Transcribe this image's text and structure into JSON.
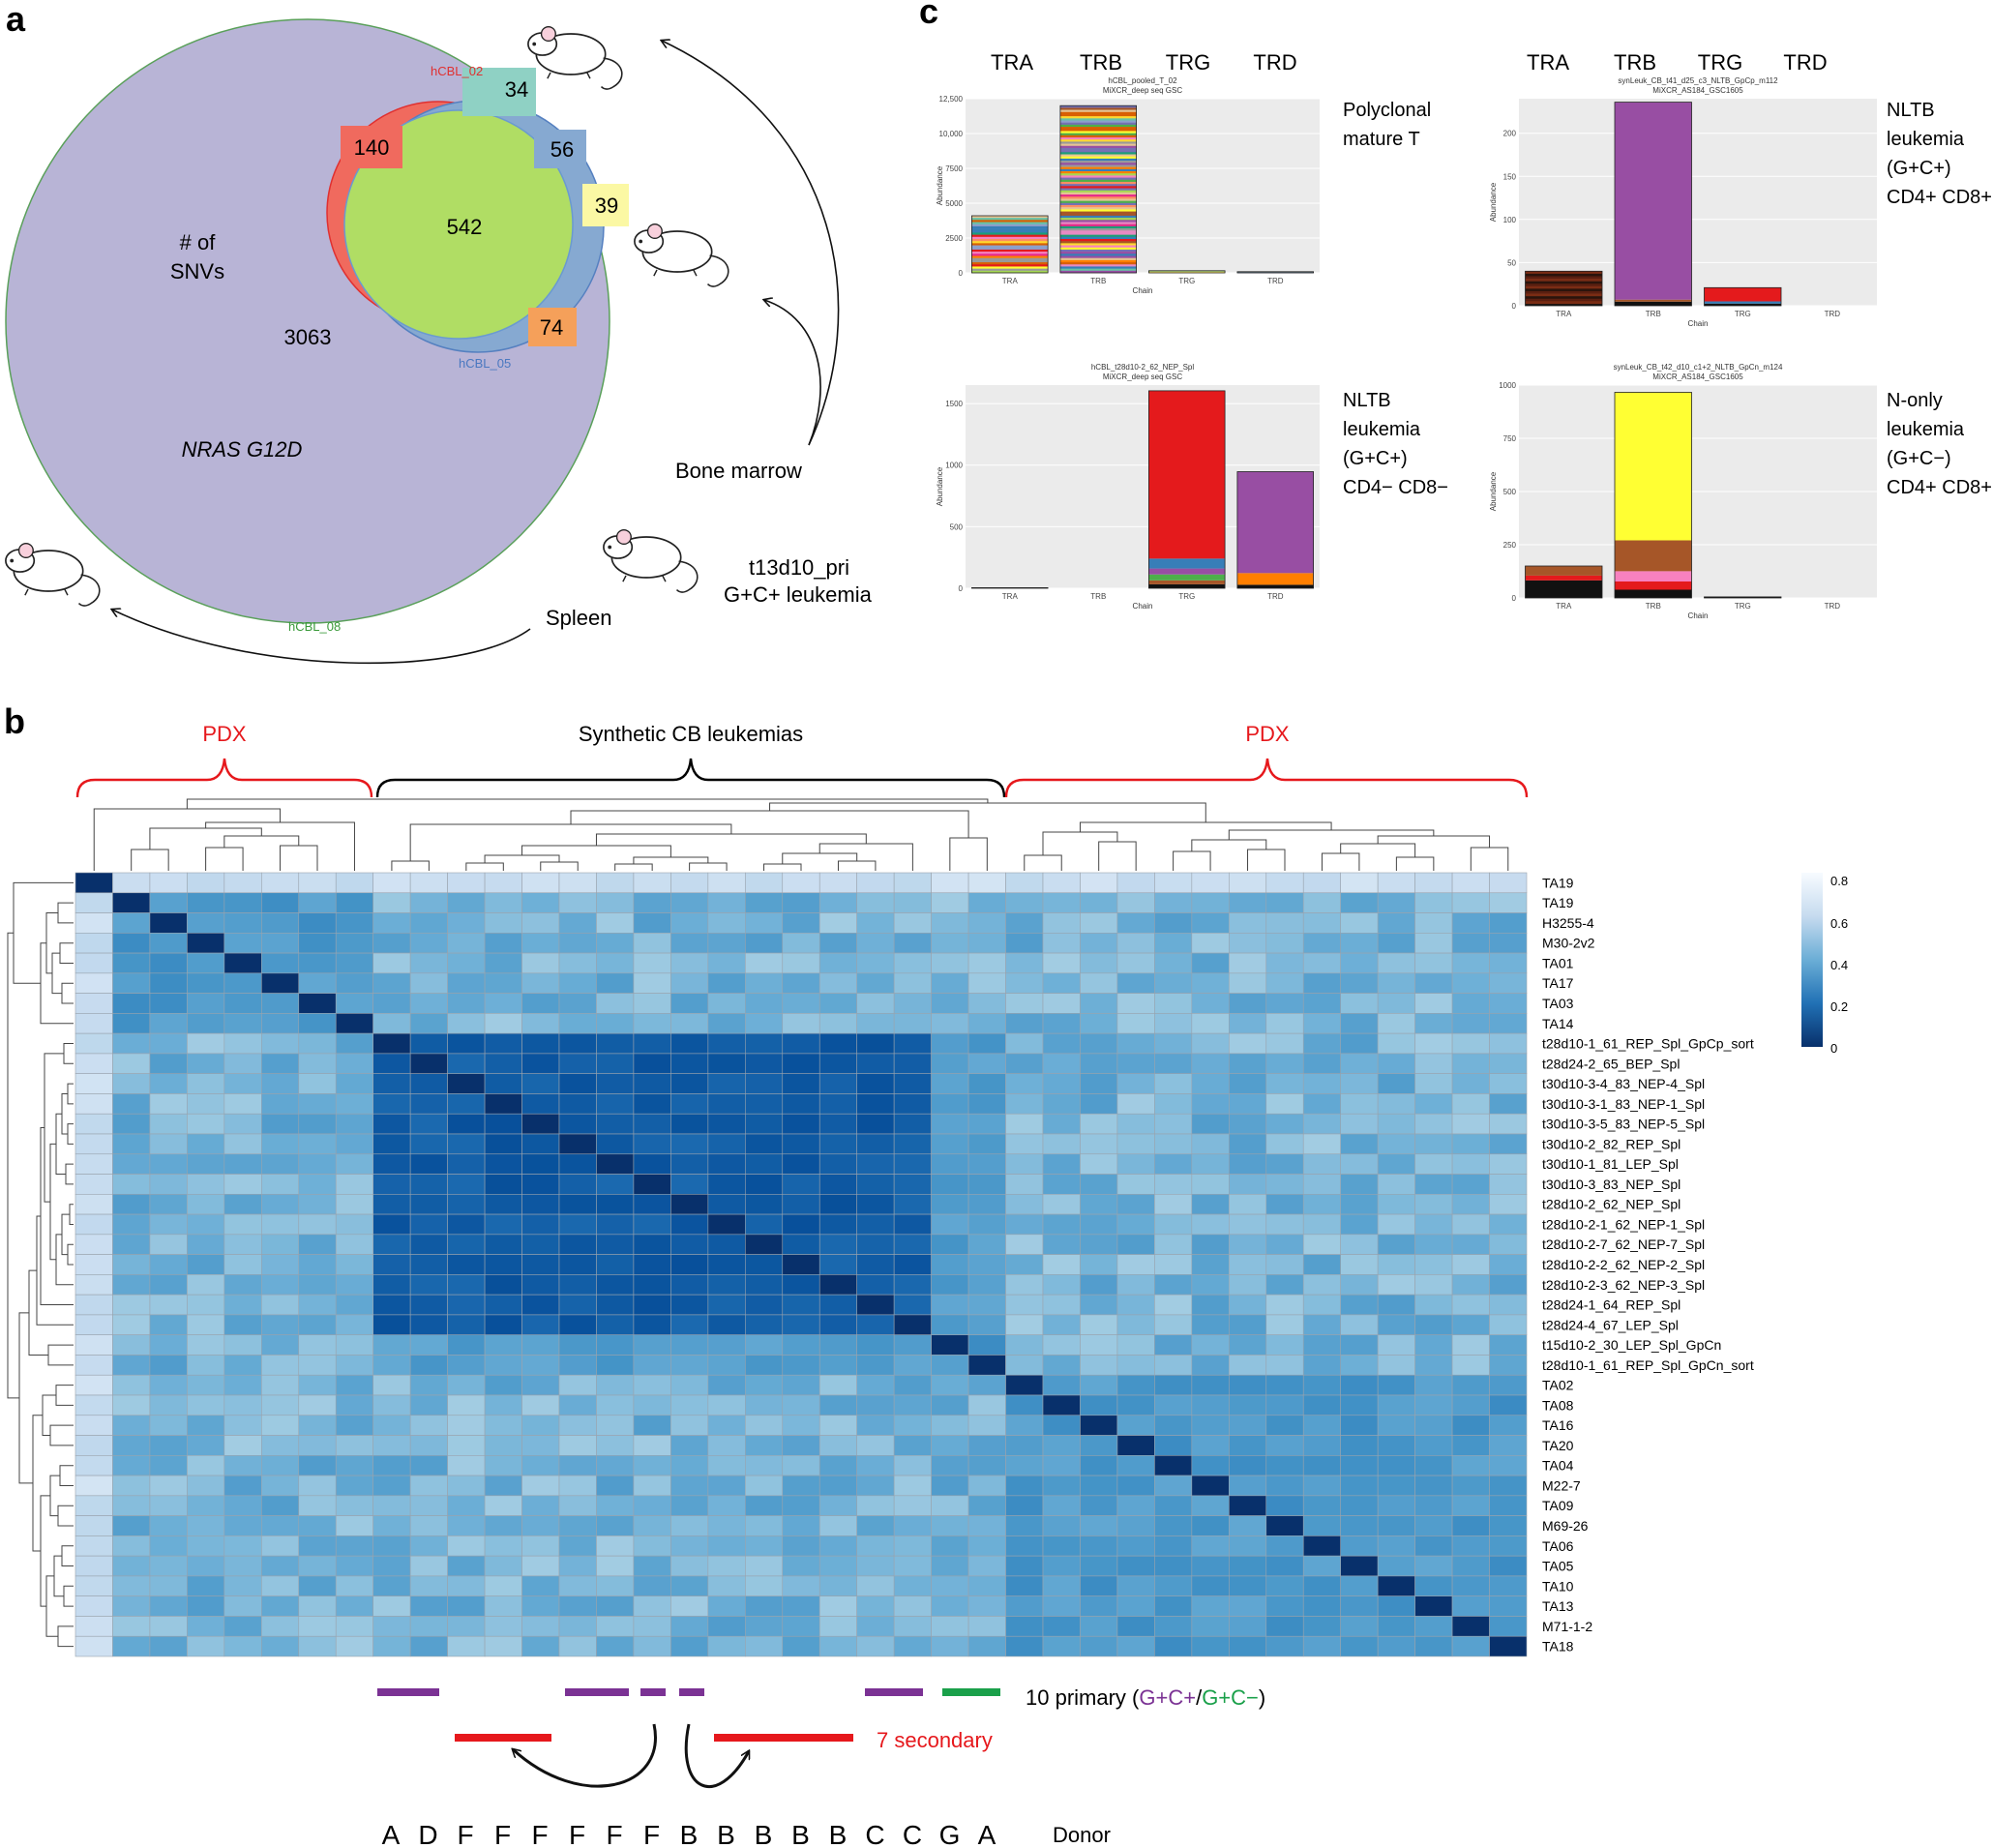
{
  "colors": {
    "venn_big": "#b8b4d6",
    "venn_red": "#f06a5e",
    "venn_blue": "#86a9d1",
    "venn_green": "#b0dd64",
    "venn_orange": "#f5a05a",
    "venn_teal": "#8fd1c4",
    "venn_yellow": "#fbf8a4",
    "pdx_red": "#e6181c",
    "purple": "#7b3294",
    "green": "#1aa04a",
    "heat_dark": "#08306b",
    "heat_light": "#f7fbff"
  },
  "panel_labels": {
    "a": "a",
    "b": "b",
    "c": "c"
  },
  "panel_a": {
    "set_labels": {
      "hcbl_02": "hCBL_02",
      "hcbl_05": "hCBL_05",
      "hcbl_08": "hCBL_08"
    },
    "counts": {
      "red_only": "140",
      "teal": "34",
      "blue": "56",
      "center": "542",
      "yellow": "39",
      "orange": "74",
      "big": "3063"
    },
    "snv_label_1": "# of",
    "snv_label_2": "SNVs",
    "gene": "NRAS G12D",
    "bone_marrow": "Bone marrow",
    "spleen": "Spleen",
    "primary_1": "t13d10_pri",
    "primary_2": "G+C+ leukemia"
  },
  "panel_b": {
    "group_left": "PDX",
    "group_mid": "Synthetic CB leukemias",
    "group_right": "PDX",
    "rows": [
      "TA19",
      "TA19",
      "H3255-4",
      "M30-2v2",
      "TA01",
      "TA17",
      "TA03",
      "TA14",
      "t28d10-1_61_REP_Spl_GpCp_sort",
      "t28d24-2_65_BEP_Spl",
      "t30d10-3-4_83_NEP-4_Spl",
      "t30d10-3-1_83_NEP-1_Spl",
      "t30d10-3-5_83_NEP-5_Spl",
      "t30d10-2_82_REP_Spl",
      "t30d10-1_81_LEP_Spl",
      "t30d10-3_83_NEP_Spl",
      "t28d10-2_62_NEP_Spl",
      "t28d10-2-1_62_NEP-1_Spl",
      "t28d10-2-7_62_NEP-7_Spl",
      "t28d10-2-2_62_NEP-2_Spl",
      "t28d10-2-3_62_NEP-3_Spl",
      "t28d24-1_64_REP_Spl",
      "t28d24-4_67_LEP_Spl",
      "t15d10-2_30_LEP_Spl_GpCn",
      "t28d10-1_61_REP_Spl_GpCn_sort",
      "TA02",
      "TA08",
      "TA16",
      "TA20",
      "TA04",
      "M22-7",
      "TA09",
      "M69-26",
      "TA06",
      "TA05",
      "TA10",
      "TA13",
      "M71-1-2",
      "TA18"
    ],
    "legend_ticks": [
      "0.8",
      "0.6",
      "0.4",
      "0.2",
      "0"
    ],
    "primary_label": "10 primary (",
    "primary_gcp": "G+C+",
    "primary_slash": "/",
    "primary_gcn": "G+C−",
    "primary_close": ")",
    "secondary_label": "7 secondary",
    "donors": [
      "A",
      "D",
      "F",
      "F",
      "F",
      "F",
      "F",
      "F",
      "B",
      "B",
      "B",
      "B",
      "B",
      "C",
      "C",
      "G",
      "A"
    ],
    "donor_label": "Donor"
  },
  "panel_c": {
    "chains": [
      "TRA",
      "TRB",
      "TRG",
      "TRD"
    ],
    "chart_data": [
      {
        "type": "bar",
        "title": "hCBL_pooled_T_02",
        "subtitle": "MiXCR_deep seq GSC",
        "xlabel": "Chain",
        "ylabel": "Abundance",
        "categories": [
          "TRA",
          "TRB",
          "TRG",
          "TRD"
        ],
        "values": [
          4100,
          12000,
          150,
          80
        ],
        "ylim": [
          0,
          12500
        ],
        "yticks": [
          0,
          2500,
          5000,
          7500,
          10000,
          12500
        ],
        "ytick_labels": [
          "0",
          "2500",
          "5000",
          "7500",
          "10,000",
          "12,500"
        ],
        "side_label": [
          "Polyclonal",
          "mature T"
        ],
        "style": "polyclonal"
      },
      {
        "type": "bar",
        "title": "synLeuk_CB_t41_d25_c3_NLTB_GpCp_m112",
        "subtitle": "MiXCR_AS184_GSC1605",
        "xlabel": "Chain",
        "ylabel": "Abundance",
        "categories": [
          "TRA",
          "TRB",
          "TRG",
          "TRD"
        ],
        "values": [
          40,
          236,
          21,
          0
        ],
        "ylim": [
          0,
          240
        ],
        "yticks": [
          0,
          50,
          100,
          150,
          200
        ],
        "ytick_labels": [
          "0",
          "50",
          "100",
          "150",
          "200"
        ],
        "side_label": [
          "NLTB",
          "leukemia",
          "(G+C+)",
          "CD4+ CD8+"
        ],
        "style": "nltb1"
      },
      {
        "type": "bar",
        "title": "hCBL_t28d10-2_62_NEP_Spl",
        "subtitle": "MiXCR_deep seq GSC",
        "xlabel": "Chain",
        "ylabel": "Abundance",
        "categories": [
          "TRA",
          "TRB",
          "TRG",
          "TRD"
        ],
        "values": [
          5,
          0,
          1604,
          947
        ],
        "ylim": [
          0,
          1650
        ],
        "yticks": [
          0,
          500,
          1000,
          1500
        ],
        "ytick_labels": [
          "0",
          "500",
          "1000",
          "1500"
        ],
        "side_label": [
          "NLTB",
          "leukemia",
          "(G+C+)",
          "CD4− CD8−"
        ],
        "style": "nltb2"
      },
      {
        "type": "bar",
        "title": "synLeuk_CB_t42_d10_c1+2_NLTB_GpCn_m124",
        "subtitle": "MiXCR_AS184_GSC1605",
        "xlabel": "Chain",
        "ylabel": "Abundance",
        "categories": [
          "TRA",
          "TRB",
          "TRG",
          "TRD"
        ],
        "values": [
          150,
          966,
          5,
          0
        ],
        "ylim": [
          0,
          1000
        ],
        "yticks": [
          0,
          250,
          500,
          750,
          1000
        ],
        "ytick_labels": [
          "0",
          "250",
          "500",
          "750",
          "1000"
        ],
        "side_label": [
          "N-only",
          "leukemia",
          "(G+C−)",
          "CD4+ CD8+"
        ],
        "style": "nonly"
      }
    ]
  }
}
